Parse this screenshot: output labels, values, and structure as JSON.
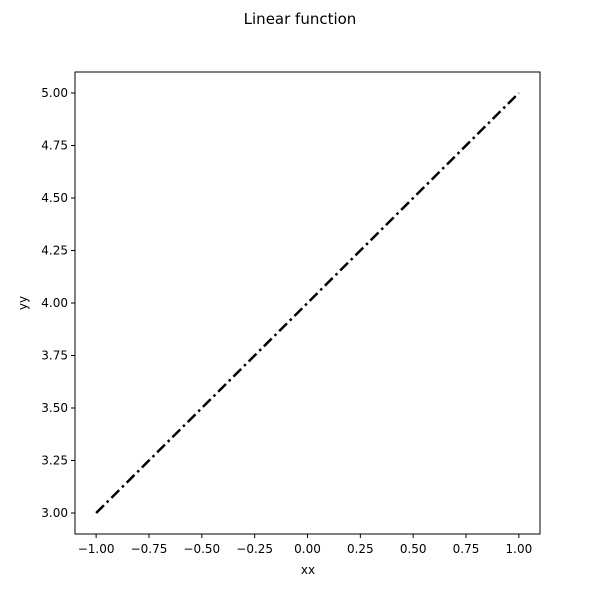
{
  "chart_data": {
    "type": "line",
    "title": "Linear function",
    "xlabel": "xx",
    "ylabel": "yy",
    "xlim": [
      -1.1,
      1.1
    ],
    "ylim": [
      2.9,
      5.1
    ],
    "xticks": [
      -1.0,
      -0.75,
      -0.5,
      -0.25,
      0.0,
      0.25,
      0.5,
      0.75,
      1.0
    ],
    "xtick_labels": [
      "−1.00",
      "−0.75",
      "−0.50",
      "−0.25",
      "0.00",
      "0.25",
      "0.50",
      "0.75",
      "1.00"
    ],
    "yticks": [
      3.0,
      3.25,
      3.5,
      3.75,
      4.0,
      4.25,
      4.5,
      4.75,
      5.0
    ],
    "ytick_labels": [
      "3.00",
      "3.25",
      "3.50",
      "3.75",
      "4.00",
      "4.25",
      "4.50",
      "4.75",
      "5.00"
    ],
    "grid": false,
    "series": [
      {
        "x": [
          -1.0,
          1.0
        ],
        "y": [
          3.0,
          5.0
        ],
        "color": "#000000",
        "linestyle": "dashdot"
      }
    ]
  }
}
